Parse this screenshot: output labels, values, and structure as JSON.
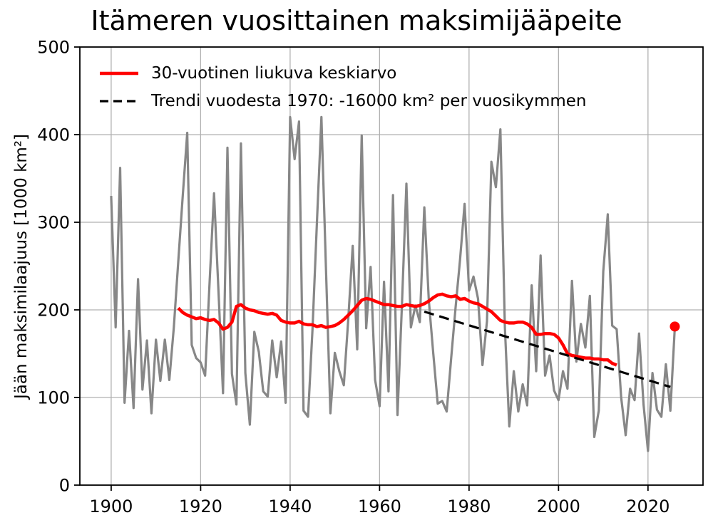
{
  "chart_data": {
    "type": "line",
    "title": "Itämeren vuosittainen maksimijääpeite",
    "xlabel": "",
    "ylabel": "Jään maksimilaajuus [1000 km²]",
    "xlim": [
      1893,
      2032.3
    ],
    "ylim": [
      0,
      500
    ],
    "xticks": [
      1900,
      1920,
      1940,
      1960,
      1980,
      2000,
      2020
    ],
    "yticks": [
      0,
      100,
      200,
      300,
      400,
      500
    ],
    "grid": true,
    "legend_position": "upper-left",
    "legend_frame": false,
    "colors": {
      "background": "#ffffff",
      "grid": "#b0b0b0",
      "axis": "#000000",
      "annual_line": "#878787",
      "moving_average_line": "#ff0000",
      "trend_line": "#000000",
      "marker": "#ff0000"
    },
    "series": [
      {
        "id": "annual",
        "name": "",
        "color": "#878787",
        "width": 3.2,
        "dash": "",
        "year_start": 1900,
        "values": [
          330,
          180,
          362,
          94,
          176,
          88,
          235,
          109,
          165,
          82,
          166,
          119,
          166,
          120,
          180,
          255,
          330,
          402,
          160,
          145,
          140,
          125,
          232,
          333,
          220,
          105,
          385,
          127,
          92,
          390,
          128,
          69,
          175,
          152,
          107,
          101,
          165,
          123,
          164,
          94,
          420,
          372,
          415,
          85,
          78,
          178,
          300,
          420,
          249,
          82,
          151,
          130,
          114,
          190,
          273,
          155,
          399,
          179,
          249,
          120,
          90,
          232,
          107,
          331,
          80,
          205,
          344,
          180,
          205,
          186,
          317,
          211,
          150,
          93,
          96,
          84,
          145,
          203,
          258,
          321,
          222,
          238,
          213,
          137,
          187,
          369,
          340,
          406,
          180,
          67,
          130,
          84,
          115,
          91,
          228,
          130,
          262,
          125,
          148,
          108,
          97,
          130,
          110,
          233,
          141,
          184,
          157,
          216,
          55,
          85,
          244,
          309,
          182,
          178,
          100,
          57,
          110,
          97,
          173,
          92,
          39,
          128,
          86,
          78,
          138,
          85,
          181
        ]
      },
      {
        "id": "moving-average",
        "name": "30-vuotinen liukuva keskiarvo",
        "color": "#ff0000",
        "width": 4.5,
        "dash": "",
        "year_start": 1915,
        "values": [
          202,
          197,
          194,
          192,
          190,
          191,
          189,
          188,
          189,
          185,
          178,
          180,
          186,
          204,
          206,
          202,
          200,
          199,
          197,
          196,
          195,
          196,
          194,
          188,
          186,
          185,
          185,
          187,
          184,
          183,
          183,
          181,
          182,
          180,
          181,
          182,
          185,
          189,
          194,
          199,
          205,
          211,
          213,
          212,
          210,
          208,
          206,
          206,
          205,
          204,
          204,
          206,
          205,
          204,
          205,
          207,
          210,
          214,
          217,
          218,
          216,
          215,
          216,
          212,
          213,
          210,
          208,
          207,
          204,
          201,
          198,
          193,
          188,
          186,
          185,
          185,
          186,
          186,
          184,
          180,
          172,
          172,
          173,
          173,
          172,
          168,
          160,
          150,
          148,
          147,
          146,
          145,
          145,
          144,
          144,
          143,
          143,
          139,
          137
        ]
      },
      {
        "id": "trend",
        "name": "Trendi vuodesta 1970: -16000 km² per vuosikymmen",
        "color": "#000000",
        "width": 3.2,
        "dash": "14,8",
        "x": [
          1970,
          2025
        ],
        "values": [
          198,
          112
        ]
      }
    ],
    "marker": {
      "id": "latest-value",
      "year": 2026,
      "value": 181,
      "color": "#ff0000",
      "radius": 7
    },
    "legend": {
      "entries": [
        "30-vuotinen liukuva keskiarvo",
        "Trendi vuodesta 1970: -16000 km² per vuosikymmen"
      ]
    }
  }
}
